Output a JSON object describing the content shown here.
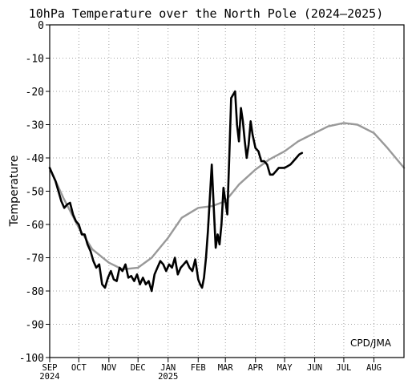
{
  "chart_data": {
    "type": "line",
    "title": "10hPa Temperature over the North Pole (2024–2025)",
    "ylabel": "Temperature",
    "xlabel": "",
    "credit": "CPD/JMA",
    "ylim": [
      -100,
      0
    ],
    "yticks": [
      0,
      -10,
      -20,
      -30,
      -40,
      -50,
      -60,
      -70,
      -80,
      -90,
      -100
    ],
    "xlim": [
      "2024-09-01",
      "2025-09-01"
    ],
    "x_ticks": [
      {
        "date": "2024-09-01",
        "label": "SEP",
        "sub": "2024"
      },
      {
        "date": "2024-10-01",
        "label": "OCT",
        "sub": ""
      },
      {
        "date": "2024-11-01",
        "label": "NOV",
        "sub": ""
      },
      {
        "date": "2024-12-01",
        "label": "DEC",
        "sub": ""
      },
      {
        "date": "2025-01-01",
        "label": "JAN",
        "sub": "2025"
      },
      {
        "date": "2025-02-01",
        "label": "FEB",
        "sub": ""
      },
      {
        "date": "2025-03-01",
        "label": "MAR",
        "sub": ""
      },
      {
        "date": "2025-04-01",
        "label": "APR",
        "sub": ""
      },
      {
        "date": "2025-05-01",
        "label": "MAY",
        "sub": ""
      },
      {
        "date": "2025-06-01",
        "label": "JUN",
        "sub": ""
      },
      {
        "date": "2025-07-01",
        "label": "JUL",
        "sub": ""
      },
      {
        "date": "2025-08-01",
        "label": "AUG",
        "sub": ""
      }
    ],
    "grid": true,
    "colors": {
      "observed": "#000000",
      "climatology": "#999999",
      "grid": "#888888"
    },
    "series": [
      {
        "key": "climatology",
        "x": [
          "2024-09-01",
          "2024-09-15",
          "2024-10-01",
          "2024-10-15",
          "2024-11-01",
          "2024-11-15",
          "2024-12-01",
          "2024-12-15",
          "2025-01-01",
          "2025-01-15",
          "2025-02-01",
          "2025-02-15",
          "2025-03-01",
          "2025-03-15",
          "2025-04-01",
          "2025-04-15",
          "2025-05-01",
          "2025-05-15",
          "2025-06-01",
          "2025-06-15",
          "2025-07-01",
          "2025-07-15",
          "2025-08-01",
          "2025-08-15",
          "2025-09-01"
        ],
        "values": [
          -43,
          -52,
          -61,
          -67.5,
          -71.5,
          -73.5,
          -73,
          -70,
          -64,
          -58,
          -55,
          -54.5,
          -53,
          -48,
          -43.5,
          -40.5,
          -38,
          -35,
          -32.5,
          -30.5,
          -29.5,
          -30,
          -32.5,
          -37,
          -43
        ]
      },
      {
        "key": "observed",
        "x": [
          "2024-09-01",
          "2024-09-04",
          "2024-09-07",
          "2024-09-10",
          "2024-09-13",
          "2024-09-16",
          "2024-09-19",
          "2024-09-22",
          "2024-09-25",
          "2024-09-28",
          "2024-10-01",
          "2024-10-04",
          "2024-10-07",
          "2024-10-10",
          "2024-10-13",
          "2024-10-16",
          "2024-10-19",
          "2024-10-22",
          "2024-10-25",
          "2024-10-28",
          "2024-10-31",
          "2024-11-03",
          "2024-11-06",
          "2024-11-09",
          "2024-11-12",
          "2024-11-15",
          "2024-11-18",
          "2024-11-21",
          "2024-11-24",
          "2024-11-27",
          "2024-11-30",
          "2024-12-03",
          "2024-12-06",
          "2024-12-09",
          "2024-12-12",
          "2024-12-15",
          "2024-12-18",
          "2024-12-21",
          "2024-12-24",
          "2024-12-27",
          "2024-12-30",
          "2025-01-02",
          "2025-01-05",
          "2025-01-08",
          "2025-01-11",
          "2025-01-14",
          "2025-01-17",
          "2025-01-20",
          "2025-01-23",
          "2025-01-26",
          "2025-01-29",
          "2025-02-01",
          "2025-02-03",
          "2025-02-05",
          "2025-02-07",
          "2025-02-09",
          "2025-02-11",
          "2025-02-13",
          "2025-02-15",
          "2025-02-17",
          "2025-02-19",
          "2025-02-21",
          "2025-02-23",
          "2025-02-25",
          "2025-02-27",
          "2025-03-01",
          "2025-03-03",
          "2025-03-05",
          "2025-03-07",
          "2025-03-09",
          "2025-03-11",
          "2025-03-13",
          "2025-03-15",
          "2025-03-17",
          "2025-03-19",
          "2025-03-21",
          "2025-03-23",
          "2025-03-25",
          "2025-03-27",
          "2025-03-29",
          "2025-04-01",
          "2025-04-04",
          "2025-04-07",
          "2025-04-10",
          "2025-04-13",
          "2025-04-16",
          "2025-04-19",
          "2025-04-22",
          "2025-04-25",
          "2025-04-28",
          "2025-05-01",
          "2025-05-04",
          "2025-05-07",
          "2025-05-10",
          "2025-05-13",
          "2025-05-16",
          "2025-05-19"
        ],
        "values": [
          -43,
          -45,
          -47,
          -50,
          -53,
          -55,
          -54,
          -53.5,
          -57,
          -59,
          -60,
          -63,
          -63,
          -66,
          -68,
          -71,
          -73,
          -72,
          -78,
          -79,
          -76,
          -74,
          -76.5,
          -77,
          -73,
          -74,
          -72,
          -76,
          -75.5,
          -77,
          -75,
          -78,
          -76,
          -78,
          -77,
          -80,
          -75,
          -73,
          -71,
          -72,
          -74,
          -72,
          -73,
          -70,
          -75,
          -73,
          -72,
          -71,
          -73,
          -74,
          -70.5,
          -76.5,
          -78,
          -79,
          -76,
          -70,
          -62,
          -52,
          -42,
          -55,
          -67,
          -63,
          -66,
          -60,
          -49,
          -53,
          -57,
          -40,
          -22,
          -21,
          -20,
          -30,
          -35,
          -25,
          -29,
          -35,
          -40,
          -36,
          -29,
          -33,
          -37,
          -38,
          -41,
          -41,
          -42,
          -45,
          -45,
          -44,
          -43,
          -43,
          -43,
          -42.5,
          -42,
          -41,
          -40,
          -39,
          -38.5
        ]
      }
    ]
  }
}
